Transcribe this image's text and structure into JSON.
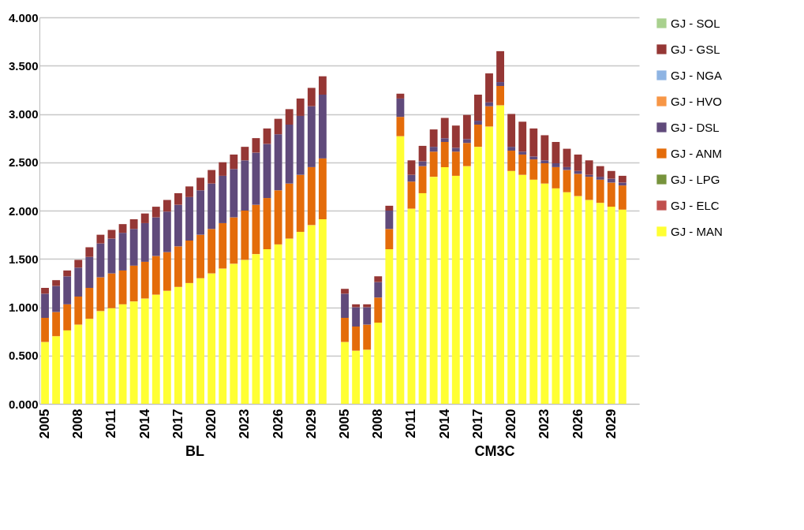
{
  "chart_data": {
    "type": "bar",
    "stacked": true,
    "grid": "y",
    "legend": "right",
    "categories": [
      "2005",
      null,
      null,
      "2008",
      null,
      null,
      "2011",
      null,
      null,
      "2014",
      null,
      null,
      "2017",
      null,
      null,
      "2020",
      null,
      null,
      "2023",
      null,
      null,
      "2026",
      null,
      null,
      "2029",
      null,
      null,
      "2005",
      null,
      null,
      "2008",
      null,
      null,
      "2011",
      null,
      null,
      "2014",
      null,
      null,
      "2017",
      null,
      null,
      "2020",
      null,
      null,
      "2023",
      null,
      null,
      "2026",
      null,
      null,
      "2029",
      null,
      null
    ],
    "ylim": [
      0,
      4
    ],
    "yticks": [
      {
        "value": 0,
        "label": "0.000"
      },
      {
        "value": 0.5,
        "label": "0.500"
      },
      {
        "value": 1,
        "label": "1.000"
      },
      {
        "value": 1.5,
        "label": "1.500"
      },
      {
        "value": 2,
        "label": "2.000"
      },
      {
        "value": 2.5,
        "label": "2.500"
      },
      {
        "value": 3,
        "label": "3.000"
      },
      {
        "value": 3.5,
        "label": "3.500"
      },
      {
        "value": 4,
        "label": "4.000"
      }
    ],
    "annotations": [
      "BL",
      "CM3C"
    ],
    "series": [
      {
        "name": "GJ - MAN",
        "color": "#ffff33",
        "values": [
          0.64,
          0.7,
          0.76,
          0.82,
          0.88,
          0.96,
          0.99,
          1.03,
          1.06,
          1.09,
          1.13,
          1.17,
          1.21,
          1.25,
          1.3,
          1.35,
          1.4,
          1.45,
          1.49,
          1.55,
          1.6,
          1.65,
          1.71,
          1.78,
          1.85,
          1.91,
          null,
          0.64,
          0.55,
          0.56,
          0.84,
          1.6,
          2.77,
          2.02,
          2.18,
          2.35,
          2.45,
          2.36,
          2.46,
          2.66,
          2.87,
          3.09,
          2.41,
          2.37,
          2.32,
          2.28,
          2.23,
          2.19,
          2.15,
          2.11,
          2.08,
          2.04,
          2.01,
          null
        ]
      },
      {
        "name": "GJ - ELC",
        "color": "#c0504d",
        "values": [
          null,
          null,
          null,
          null,
          null,
          null,
          null,
          null,
          null,
          null,
          null,
          null,
          null,
          null,
          null,
          null,
          null,
          null,
          null,
          null,
          null,
          null,
          null,
          null,
          null,
          null,
          null,
          null,
          null,
          null,
          null,
          null,
          null,
          null,
          null,
          null,
          null,
          null,
          null,
          null,
          null,
          null,
          null,
          null,
          null,
          null,
          null,
          null,
          null,
          null,
          null,
          null,
          null,
          null
        ]
      },
      {
        "name": "GJ - LPG",
        "color": "#77933c",
        "values": [
          null,
          null,
          null,
          null,
          null,
          null,
          null,
          null,
          null,
          null,
          null,
          null,
          null,
          null,
          null,
          null,
          null,
          null,
          null,
          null,
          null,
          null,
          null,
          null,
          null,
          null,
          null,
          null,
          null,
          null,
          null,
          null,
          null,
          null,
          null,
          null,
          null,
          null,
          null,
          null,
          null,
          null,
          null,
          null,
          null,
          null,
          null,
          null,
          null,
          null,
          null,
          null,
          null,
          null
        ]
      },
      {
        "name": "GJ - ANM",
        "color": "#e46c0a",
        "values": [
          0.25,
          0.25,
          0.27,
          0.29,
          0.32,
          0.35,
          0.36,
          0.35,
          0.37,
          0.38,
          0.4,
          0.4,
          0.42,
          0.44,
          0.45,
          0.46,
          0.47,
          0.48,
          0.51,
          0.51,
          0.53,
          0.56,
          0.57,
          0.59,
          0.6,
          0.63,
          null,
          0.25,
          0.25,
          0.26,
          0.26,
          0.21,
          0.2,
          0.28,
          0.28,
          0.26,
          0.26,
          0.25,
          0.24,
          0.23,
          0.21,
          0.2,
          0.21,
          0.21,
          0.21,
          0.21,
          0.22,
          0.23,
          0.23,
          0.24,
          0.24,
          0.25,
          0.25,
          null
        ]
      },
      {
        "name": "GJ - DSL",
        "color": "#604a7b",
        "values": [
          0.25,
          0.27,
          0.29,
          0.3,
          0.32,
          0.35,
          0.36,
          0.39,
          0.38,
          0.4,
          0.4,
          0.42,
          0.43,
          0.45,
          0.46,
          0.47,
          0.49,
          0.5,
          0.52,
          0.54,
          0.56,
          0.58,
          0.61,
          0.61,
          0.63,
          0.66,
          null,
          0.25,
          0.2,
          0.18,
          0.16,
          0.19,
          0.19,
          0.07,
          0.05,
          0.05,
          0.04,
          0.04,
          0.04,
          0.04,
          0.04,
          0.04,
          0.04,
          0.03,
          0.03,
          0.03,
          0.04,
          0.03,
          0.03,
          0.02,
          0.03,
          0.04,
          0.03,
          null
        ]
      },
      {
        "name": "GJ - HVO",
        "color": "#f79646",
        "values": [
          null,
          null,
          null,
          null,
          null,
          null,
          null,
          null,
          null,
          null,
          null,
          null,
          null,
          null,
          null,
          null,
          null,
          null,
          null,
          null,
          null,
          null,
          null,
          null,
          null,
          null,
          null,
          null,
          null,
          null,
          null,
          null,
          null,
          null,
          null,
          null,
          null,
          null,
          null,
          null,
          null,
          null,
          null,
          null,
          null,
          null,
          null,
          null,
          null,
          null,
          null,
          null,
          null,
          null
        ]
      },
      {
        "name": "GJ - NGA",
        "color": "#8eb4e3",
        "values": [
          null,
          null,
          null,
          null,
          null,
          null,
          null,
          null,
          null,
          null,
          null,
          null,
          null,
          null,
          null,
          null,
          null,
          null,
          null,
          null,
          null,
          null,
          null,
          null,
          null,
          null,
          null,
          null,
          null,
          null,
          null,
          null,
          null,
          null,
          null,
          null,
          null,
          null,
          null,
          null,
          null,
          null,
          null,
          null,
          null,
          null,
          null,
          null,
          null,
          null,
          null,
          null,
          null,
          null
        ]
      },
      {
        "name": "GJ - GSL",
        "color": "#953735",
        "values": [
          0.06,
          0.06,
          0.06,
          0.08,
          0.1,
          0.09,
          0.09,
          0.09,
          0.1,
          0.1,
          0.11,
          0.12,
          0.12,
          0.11,
          0.13,
          0.14,
          0.14,
          0.15,
          0.14,
          0.15,
          0.16,
          0.16,
          0.16,
          0.18,
          0.19,
          0.19,
          null,
          0.05,
          0.03,
          0.03,
          0.06,
          0.05,
          0.05,
          0.15,
          0.16,
          0.18,
          0.21,
          0.23,
          0.25,
          0.27,
          0.3,
          0.32,
          0.34,
          0.31,
          0.29,
          0.26,
          0.22,
          0.19,
          0.17,
          0.15,
          0.11,
          0.08,
          0.07,
          null
        ]
      },
      {
        "name": "GJ - SOL",
        "color": "#a9d18e",
        "values": [
          null,
          null,
          null,
          null,
          null,
          null,
          null,
          null,
          null,
          null,
          null,
          null,
          null,
          null,
          null,
          null,
          null,
          null,
          null,
          null,
          null,
          null,
          null,
          null,
          null,
          null,
          null,
          null,
          null,
          null,
          null,
          null,
          null,
          null,
          null,
          null,
          null,
          null,
          null,
          null,
          null,
          null,
          null,
          null,
          null,
          null,
          null,
          null,
          null,
          null,
          null,
          null,
          null,
          null
        ]
      }
    ]
  }
}
